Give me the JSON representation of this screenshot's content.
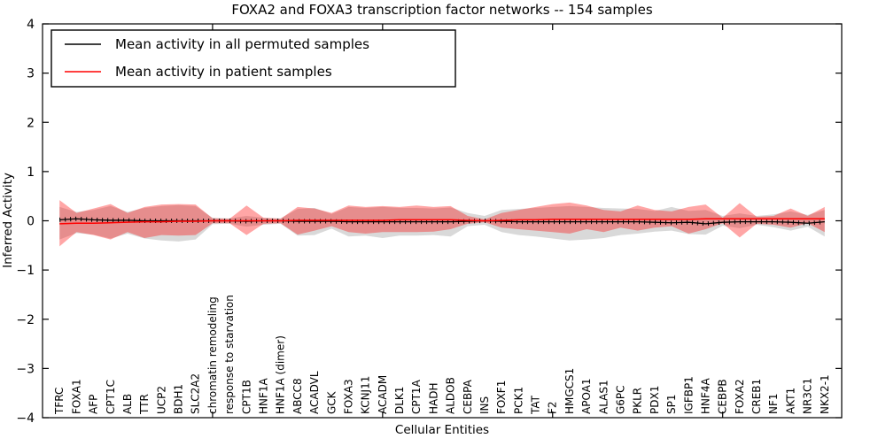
{
  "title": "FOXA2 and FOXA3 transcription factor networks -- 154 samples",
  "legend": {
    "items": [
      {
        "label": "Mean activity in all permuted samples",
        "color": "#000000"
      },
      {
        "label": "Mean activity in patient samples",
        "color": "#ff0000"
      }
    ]
  },
  "axes": {
    "xlabel": "Cellular Entities",
    "ylabel": "Inferred Activity",
    "yticks": [
      {
        "label": "4",
        "value": 4
      },
      {
        "label": "3",
        "value": 3
      },
      {
        "label": "2",
        "value": 2
      },
      {
        "label": "1",
        "value": 1
      },
      {
        "label": "0",
        "value": 0
      },
      {
        "label": "−1",
        "value": -1
      },
      {
        "label": "−2",
        "value": -2
      },
      {
        "label": "−3",
        "value": -3
      },
      {
        "label": "−4",
        "value": -4
      }
    ],
    "xticks_numeric": [
      10,
      20,
      30,
      40
    ],
    "ylim": [
      -4,
      4
    ],
    "xlim": [
      0,
      47
    ]
  },
  "colors": {
    "permuted_line": "#000000",
    "patient_line": "#ff0000",
    "permuted_fill": "rgba(128,128,128,0.30)",
    "patient_fill": "rgba(255,0,0,0.35)",
    "background": "#ffffff"
  },
  "chart_data": {
    "type": "area",
    "title": "FOXA2 and FOXA3 transcription factor networks -- 154 samples",
    "xlabel": "Cellular Entities",
    "ylabel": "Inferred Activity",
    "ylim": [
      -4,
      4
    ],
    "xlim": [
      0,
      47
    ],
    "grid": false,
    "legend_position": "upper left",
    "categories": [
      "TFRC",
      "FOXA1",
      "AFP",
      "CPT1C",
      "ALB",
      "TTR",
      "UCP2",
      "BDH1",
      "SLC2A2",
      "chromatin remodeling",
      "response to starvation",
      "CPT1B",
      "HNF1A",
      "HNF1A (dimer)",
      "ABCC8",
      "ACADVL",
      "GCK",
      "FOXA3",
      "KCNJ11",
      "ACADM",
      "DLK1",
      "CPT1A",
      "HADH",
      "ALDOB",
      "CEBPA",
      "INS",
      "FOXF1",
      "PCK1",
      "TAT",
      "F2",
      "HMGCS1",
      "APOA1",
      "ALAS1",
      "G6PC",
      "PKLR",
      "PDX1",
      "SP1",
      "IGFBP1",
      "HNF4A",
      "CEBPB",
      "FOXA2",
      "CREB1",
      "NF1",
      "AKT1",
      "NR3C1",
      "NKX2-1"
    ],
    "series": [
      {
        "name": "permuted_band_upper",
        "values": [
          0.28,
          0.18,
          0.22,
          0.3,
          0.18,
          0.26,
          0.3,
          0.32,
          0.3,
          0.06,
          0.05,
          0.1,
          0.06,
          0.05,
          0.24,
          0.26,
          0.14,
          0.28,
          0.26,
          0.28,
          0.26,
          0.26,
          0.25,
          0.27,
          0.16,
          0.1,
          0.22,
          0.24,
          0.26,
          0.28,
          0.3,
          0.28,
          0.26,
          0.25,
          0.24,
          0.2,
          0.28,
          0.2,
          0.22,
          0.1,
          0.15,
          0.1,
          0.13,
          0.19,
          0.12,
          0.22
        ]
      },
      {
        "name": "permuted_band_lower",
        "values": [
          -0.38,
          -0.25,
          -0.28,
          -0.36,
          -0.26,
          -0.36,
          -0.4,
          -0.42,
          -0.38,
          -0.07,
          -0.06,
          -0.12,
          -0.08,
          -0.06,
          -0.3,
          -0.29,
          -0.16,
          -0.32,
          -0.3,
          -0.35,
          -0.3,
          -0.3,
          -0.29,
          -0.32,
          -0.11,
          -0.08,
          -0.23,
          -0.29,
          -0.32,
          -0.36,
          -0.4,
          -0.38,
          -0.35,
          -0.29,
          -0.26,
          -0.22,
          -0.2,
          -0.27,
          -0.28,
          -0.1,
          -0.15,
          -0.08,
          -0.13,
          -0.2,
          -0.12,
          -0.32
        ]
      },
      {
        "name": "patient_band_upper",
        "values": [
          0.42,
          0.16,
          0.25,
          0.34,
          0.16,
          0.28,
          0.33,
          0.34,
          0.33,
          0.05,
          0.04,
          0.31,
          0.06,
          0.04,
          0.28,
          0.25,
          0.16,
          0.31,
          0.28,
          0.3,
          0.28,
          0.31,
          0.28,
          0.3,
          0.1,
          0.03,
          0.16,
          0.22,
          0.28,
          0.34,
          0.37,
          0.31,
          0.22,
          0.19,
          0.31,
          0.22,
          0.19,
          0.28,
          0.33,
          0.06,
          0.36,
          0.08,
          0.1,
          0.25,
          0.1,
          0.28
        ]
      },
      {
        "name": "patient_band_lower",
        "values": [
          -0.52,
          -0.23,
          -0.29,
          -0.38,
          -0.23,
          -0.35,
          -0.29,
          -0.3,
          -0.29,
          -0.05,
          -0.05,
          -0.29,
          -0.06,
          -0.05,
          -0.28,
          -0.2,
          -0.11,
          -0.23,
          -0.26,
          -0.23,
          -0.23,
          -0.23,
          -0.22,
          -0.17,
          -0.06,
          -0.03,
          -0.14,
          -0.17,
          -0.2,
          -0.23,
          -0.26,
          -0.17,
          -0.23,
          -0.14,
          -0.2,
          -0.14,
          -0.11,
          -0.26,
          -0.17,
          -0.05,
          -0.34,
          -0.06,
          -0.08,
          -0.14,
          -0.05,
          -0.23
        ]
      },
      {
        "name": "permuted_mean",
        "values": [
          0.02,
          0.04,
          0.02,
          0.01,
          0.01,
          0.0,
          0.0,
          0.0,
          0.0,
          0.0,
          0.0,
          -0.01,
          0.0,
          0.0,
          -0.01,
          -0.01,
          -0.01,
          -0.02,
          -0.02,
          -0.02,
          -0.02,
          -0.02,
          -0.02,
          -0.02,
          -0.01,
          0.0,
          -0.01,
          -0.02,
          -0.02,
          -0.02,
          -0.02,
          -0.02,
          -0.02,
          -0.02,
          -0.02,
          -0.03,
          -0.04,
          -0.03,
          -0.06,
          -0.03,
          -0.02,
          -0.02,
          -0.02,
          -0.03,
          -0.05,
          -0.02
        ]
      },
      {
        "name": "patient_mean",
        "values": [
          -0.06,
          -0.05,
          -0.05,
          -0.04,
          -0.03,
          -0.02,
          -0.02,
          -0.01,
          -0.01,
          0.0,
          0.0,
          0.0,
          0.0,
          0.0,
          0.01,
          0.01,
          0.01,
          0.01,
          0.01,
          0.01,
          0.02,
          0.02,
          0.02,
          0.02,
          0.01,
          0.0,
          0.01,
          0.02,
          0.02,
          0.03,
          0.03,
          0.03,
          0.03,
          0.03,
          0.03,
          0.03,
          0.03,
          0.03,
          0.04,
          0.04,
          0.04,
          0.04,
          0.04,
          0.04,
          0.04,
          0.04
        ]
      }
    ]
  }
}
